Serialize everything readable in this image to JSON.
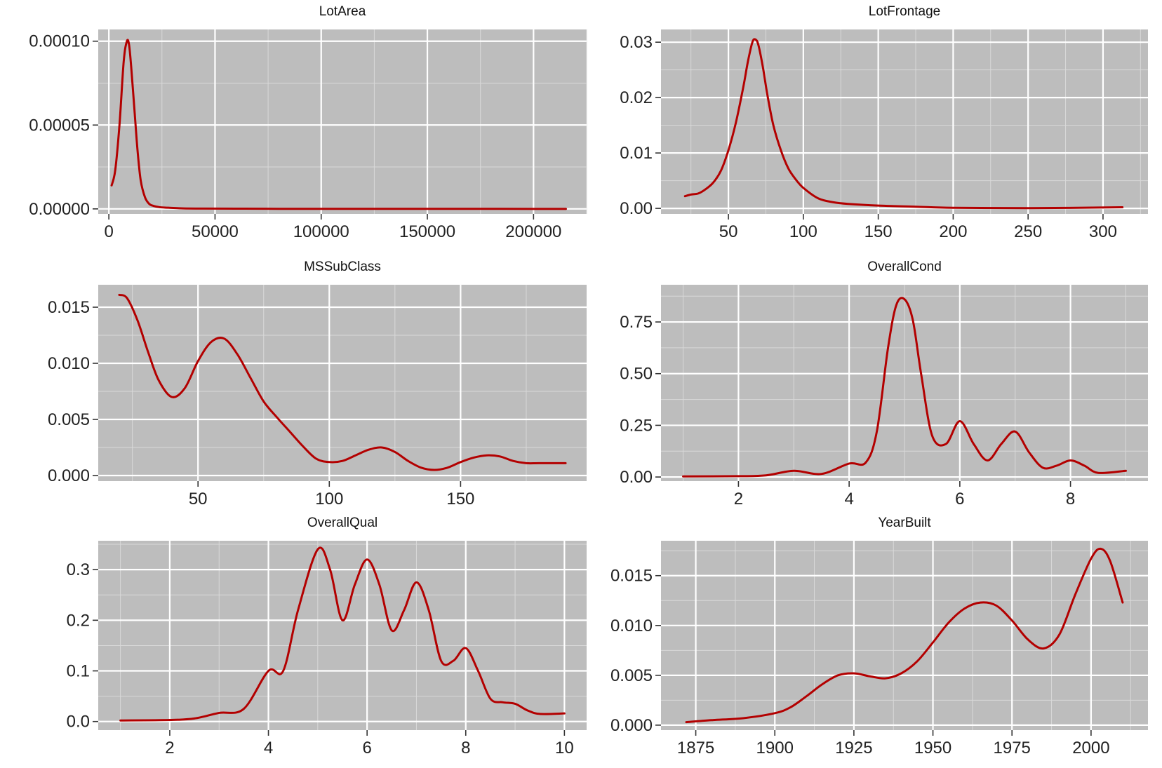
{
  "line_color": "#b30000",
  "chart_data": [
    {
      "type": "line",
      "title": "LotArea",
      "xlim": [
        -5000,
        225000
      ],
      "ylim": [
        -3e-06,
        0.000107
      ],
      "xticks": [
        0,
        50000,
        100000,
        150000,
        200000
      ],
      "xtick_labels": [
        "0",
        "50000",
        "100000",
        "150000",
        "200000"
      ],
      "yticks": [
        0,
        5e-05,
        0.0001
      ],
      "ytick_labels": [
        "0.00000",
        "0.00005",
        "0.00010"
      ],
      "x": [
        1300,
        3000,
        5000,
        7000,
        8500,
        9500,
        10500,
        12000,
        13500,
        15000,
        17000,
        19000,
        21000,
        24000,
        28000,
        35000,
        45000,
        60000,
        80000,
        120000,
        160000,
        215245
      ],
      "y": [
        1.4e-05,
        2.3e-05,
        5e-05,
        8.8e-05,
        0.0001,
        9.8e-05,
        8.5e-05,
        6e-05,
        3.5e-05,
        1.7e-05,
        7e-06,
        3e-06,
        1.8e-06,
        1e-06,
        7e-07,
        3e-07,
        2e-07,
        1.5e-07,
        5e-08,
        3e-08,
        2e-08,
        0
      ]
    },
    {
      "type": "line",
      "title": "LotFrontage",
      "xlim": [
        5,
        330
      ],
      "ylim": [
        -0.001,
        0.0323
      ],
      "xticks": [
        50,
        100,
        150,
        200,
        250,
        300
      ],
      "xtick_labels": [
        "50",
        "100",
        "150",
        "200",
        "250",
        "300"
      ],
      "yticks": [
        0,
        0.01,
        0.02,
        0.03
      ],
      "ytick_labels": [
        "0.00",
        "0.01",
        "0.02",
        "0.03"
      ],
      "x": [
        21,
        25,
        30,
        35,
        40,
        45,
        50,
        55,
        60,
        63,
        66,
        68,
        70,
        73,
        76,
        80,
        85,
        90,
        95,
        100,
        110,
        120,
        130,
        150,
        175,
        200,
        250,
        313
      ],
      "y": [
        0.0022,
        0.0025,
        0.0027,
        0.0035,
        0.0047,
        0.0068,
        0.0105,
        0.0155,
        0.022,
        0.0265,
        0.03,
        0.0305,
        0.0295,
        0.0255,
        0.0205,
        0.015,
        0.0105,
        0.0072,
        0.0052,
        0.0037,
        0.0018,
        0.0011,
        0.0008,
        0.0005,
        0.0003,
        0.0001,
        4e-05,
        0.0002
      ]
    },
    {
      "type": "line",
      "title": "MSSubClass",
      "xlim": [
        12,
        198
      ],
      "ylim": [
        -0.0005,
        0.017
      ],
      "xticks": [
        50,
        100,
        150
      ],
      "xtick_labels": [
        "50",
        "100",
        "150"
      ],
      "yticks": [
        0,
        0.005,
        0.01,
        0.015
      ],
      "ytick_labels": [
        "0.000",
        "0.005",
        "0.010",
        "0.015"
      ],
      "x": [
        20,
        23,
        27,
        31,
        35,
        40,
        45,
        50,
        55,
        60,
        65,
        70,
        75,
        80,
        85,
        90,
        95,
        100,
        105,
        110,
        115,
        120,
        125,
        130,
        135,
        140,
        145,
        150,
        155,
        160,
        165,
        170,
        175,
        180,
        190
      ],
      "y": [
        0.0161,
        0.0158,
        0.0138,
        0.011,
        0.0085,
        0.007,
        0.0078,
        0.0102,
        0.0119,
        0.0122,
        0.0108,
        0.0087,
        0.0066,
        0.0052,
        0.0039,
        0.0026,
        0.0015,
        0.0012,
        0.0013,
        0.0018,
        0.0023,
        0.0025,
        0.0021,
        0.0013,
        0.0007,
        0.0005,
        0.0007,
        0.0012,
        0.0016,
        0.0018,
        0.0017,
        0.0013,
        0.0011,
        0.0011,
        0.0011
      ]
    },
    {
      "type": "line",
      "title": "OverallCond",
      "xlim": [
        0.6,
        9.4
      ],
      "ylim": [
        -0.02,
        0.93
      ],
      "xticks": [
        2,
        4,
        6,
        8
      ],
      "xtick_labels": [
        "2",
        "4",
        "6",
        "8"
      ],
      "yticks": [
        0,
        0.25,
        0.5,
        0.75
      ],
      "ytick_labels": [
        "0.00",
        "0.25",
        "0.50",
        "0.75"
      ],
      "x": [
        1,
        2,
        2.5,
        3,
        3.5,
        4,
        4.3,
        4.5,
        4.7,
        4.85,
        5,
        5.15,
        5.3,
        5.5,
        5.75,
        6,
        6.25,
        6.5,
        6.75,
        7,
        7.25,
        7.5,
        7.75,
        8,
        8.25,
        8.5,
        9
      ],
      "y": [
        0.003,
        0.004,
        0.008,
        0.03,
        0.015,
        0.065,
        0.07,
        0.22,
        0.62,
        0.83,
        0.86,
        0.76,
        0.5,
        0.2,
        0.16,
        0.27,
        0.16,
        0.08,
        0.16,
        0.22,
        0.12,
        0.045,
        0.055,
        0.08,
        0.055,
        0.02,
        0.03
      ]
    },
    {
      "type": "line",
      "title": "OverallQual",
      "xlim": [
        0.55,
        10.45
      ],
      "ylim": [
        -0.017,
        0.357
      ],
      "xticks": [
        2,
        4,
        6,
        8,
        10
      ],
      "xtick_labels": [
        "2",
        "4",
        "6",
        "8",
        "10"
      ],
      "yticks": [
        0,
        0.1,
        0.2,
        0.3
      ],
      "ytick_labels": [
        "0.0",
        "0.1",
        "0.2",
        "0.3"
      ],
      "x": [
        1,
        2,
        2.5,
        3,
        3.5,
        4,
        4.3,
        4.6,
        5,
        5.25,
        5.5,
        5.75,
        6,
        6.25,
        6.5,
        6.75,
        7,
        7.25,
        7.5,
        7.75,
        8,
        8.25,
        8.5,
        8.75,
        9,
        9.25,
        9.5,
        10
      ],
      "y": [
        0.002,
        0.003,
        0.006,
        0.017,
        0.025,
        0.1,
        0.1,
        0.22,
        0.34,
        0.3,
        0.2,
        0.27,
        0.32,
        0.27,
        0.18,
        0.22,
        0.275,
        0.22,
        0.12,
        0.12,
        0.145,
        0.1,
        0.045,
        0.038,
        0.035,
        0.022,
        0.015,
        0.016
      ]
    },
    {
      "type": "line",
      "title": "YearBuilt",
      "xlim": [
        1864,
        2018
      ],
      "ylim": [
        -0.0005,
        0.0185
      ],
      "xticks": [
        1875,
        1900,
        1925,
        1950,
        1975,
        2000
      ],
      "xtick_labels": [
        "1875",
        "1900",
        "1925",
        "1950",
        "1975",
        "2000"
      ],
      "yticks": [
        0,
        0.005,
        0.01,
        0.015
      ],
      "ytick_labels": [
        "0.000",
        "0.005",
        "0.010",
        "0.015"
      ],
      "x": [
        1872,
        1880,
        1890,
        1900,
        1905,
        1910,
        1915,
        1920,
        1925,
        1930,
        1935,
        1940,
        1945,
        1950,
        1955,
        1960,
        1965,
        1970,
        1975,
        1980,
        1985,
        1990,
        1995,
        2000,
        2003,
        2006,
        2010
      ],
      "y": [
        0.0003,
        0.0005,
        0.0007,
        0.0012,
        0.0018,
        0.0029,
        0.0041,
        0.005,
        0.0052,
        0.0049,
        0.0047,
        0.0052,
        0.0064,
        0.0083,
        0.0103,
        0.0117,
        0.0123,
        0.012,
        0.0105,
        0.0086,
        0.0077,
        0.0091,
        0.0131,
        0.0167,
        0.0177,
        0.0165,
        0.0123
      ]
    }
  ]
}
